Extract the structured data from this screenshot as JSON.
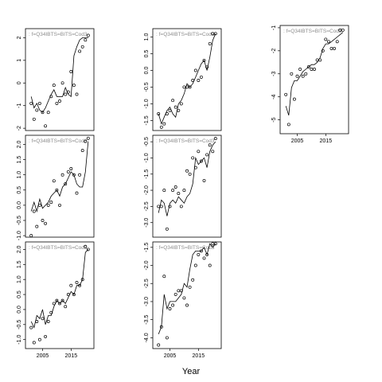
{
  "figure": {
    "xlabel": "Year"
  },
  "chart_data": [
    {
      "type": "line",
      "label": "f=Q34IBTS=BITS=Cod3",
      "xlim": [
        1999,
        2023
      ],
      "ylim": [
        -2.1,
        2.4
      ],
      "xticks": [],
      "yticks": [
        -2,
        -1,
        0,
        1,
        2
      ],
      "ytick_labels": [
        "-2",
        "-1",
        "0",
        "1",
        "2"
      ],
      "x": [
        2001,
        2002,
        2003,
        2004,
        2005,
        2006,
        2007,
        2008,
        2009,
        2010,
        2011,
        2012,
        2013,
        2014,
        2015,
        2016,
        2017,
        2018,
        2019,
        2020,
        2021
      ],
      "fitted": [
        -0.6,
        -1.1,
        -0.9,
        -1.2,
        -1.3,
        -1.1,
        -0.8,
        -0.5,
        -0.3,
        -0.6,
        -0.6,
        -0.6,
        -0.2,
        -0.5,
        -0.6,
        1.2,
        1.6,
        1.9,
        2.0,
        2.0,
        2.0
      ],
      "observed": [
        -0.9,
        -1.6,
        -1.2,
        -0.9,
        -1.3,
        -1.9,
        -1.3,
        -0.6,
        -0.1,
        -0.9,
        -0.8,
        0.0,
        -0.5,
        -0.4,
        0.5,
        -0.1,
        -0.5,
        1.4,
        1.6,
        1.9,
        2.1
      ]
    },
    {
      "type": "line",
      "label": "f=Q34IBTS=BITS=Cod3",
      "xlim": [
        1999,
        2023
      ],
      "ylim": [
        -1.8,
        1.25
      ],
      "xticks": [],
      "yticks": [
        -1.5,
        -1.0,
        -0.5,
        0.0,
        0.5,
        1.0
      ],
      "ytick_labels": [
        "-1.5",
        "-1.0",
        "-0.5",
        "0.0",
        "0.5",
        "1.0"
      ],
      "x": [
        2001,
        2002,
        2003,
        2004,
        2005,
        2006,
        2007,
        2008,
        2009,
        2010,
        2011,
        2012,
        2013,
        2014,
        2015,
        2016,
        2017,
        2018,
        2019,
        2020,
        2021
      ],
      "fitted": [
        -1.3,
        -1.6,
        -1.4,
        -1.2,
        -1.1,
        -1.3,
        -1.4,
        -1.0,
        -0.9,
        -0.7,
        -0.4,
        -0.5,
        -0.4,
        -0.2,
        0.0,
        0.2,
        0.3,
        0.0,
        0.4,
        0.9,
        1.1
      ],
      "observed": [
        -1.3,
        -1.7,
        -1.6,
        -1.3,
        -1.2,
        -0.9,
        -1.1,
        -1.2,
        -1.0,
        -0.5,
        -0.5,
        -0.5,
        -0.3,
        0.0,
        -0.3,
        -0.2,
        0.3,
        0.1,
        0.8,
        1.1,
        1.1
      ]
    },
    {
      "type": "line",
      "label": "f=Q34IBTS=BITS=Cod3",
      "xlim": [
        1999,
        2023
      ],
      "ylim": [
        -5.6,
        -0.9
      ],
      "xticks": [
        2005,
        2015
      ],
      "xtick_labels": [
        "2005",
        "2015"
      ],
      "yticks": [
        -5,
        -4,
        -3,
        -2,
        -1
      ],
      "ytick_labels": [
        "-5",
        "-4",
        "-3",
        "-2",
        "-1"
      ],
      "x": [
        2001,
        2002,
        2003,
        2004,
        2005,
        2006,
        2007,
        2008,
        2009,
        2010,
        2011,
        2012,
        2013,
        2014,
        2015,
        2016,
        2017,
        2018,
        2019,
        2020,
        2021
      ],
      "fitted": [
        -4.4,
        -4.8,
        -3.6,
        -3.3,
        -3.3,
        -3.1,
        -2.9,
        -2.8,
        -2.7,
        -2.6,
        -2.6,
        -2.5,
        -2.3,
        -1.9,
        -1.7,
        -1.7,
        -1.6,
        -1.5,
        -1.4,
        -1.3,
        -1.2
      ],
      "observed": [
        -3.9,
        -5.2,
        -3.0,
        -4.1,
        -3.1,
        -2.8,
        -3.1,
        -3.0,
        -2.7,
        -2.8,
        -2.8,
        -2.4,
        -2.4,
        -2.0,
        -1.5,
        -1.6,
        -1.9,
        -1.9,
        -1.6,
        -1.1,
        -1.1
      ]
    },
    {
      "type": "line",
      "label": "f=Q34IBTS=BITS=Cod3",
      "xlim": [
        1999,
        2023
      ],
      "ylim": [
        -1.05,
        2.3
      ],
      "xticks": [],
      "yticks": [
        -1.0,
        -0.5,
        0.0,
        0.5,
        1.0,
        1.5,
        2.0
      ],
      "ytick_labels": [
        "-1.0",
        "-0.5",
        "0.0",
        "0.5",
        "1.0",
        "1.5",
        "2.0"
      ],
      "x": [
        2001,
        2002,
        2003,
        2004,
        2005,
        2006,
        2007,
        2008,
        2009,
        2010,
        2011,
        2012,
        2013,
        2014,
        2015,
        2016,
        2017,
        2018,
        2019,
        2020,
        2021
      ],
      "fitted": [
        -0.2,
        0.1,
        -0.2,
        0.2,
        -0.1,
        0.0,
        0.1,
        0.3,
        0.4,
        0.5,
        0.3,
        0.6,
        0.7,
        0.9,
        1.1,
        1.0,
        0.7,
        0.6,
        0.6,
        1.1,
        2.1
      ],
      "observed": [
        -1.0,
        -0.2,
        -0.7,
        0.0,
        -0.5,
        -0.6,
        0.0,
        0.1,
        0.8,
        0.5,
        0.0,
        1.0,
        0.7,
        1.1,
        1.2,
        1.0,
        0.4,
        1.0,
        1.8,
        2.1,
        2.2
      ]
    },
    {
      "type": "line",
      "label": "f=Q34IBTS=BITS=Cod3",
      "xlim": [
        1999,
        2023
      ],
      "ylim": [
        -3.45,
        -0.3
      ],
      "xticks": [],
      "yticks": [
        -3.0,
        -2.5,
        -2.0,
        -1.5,
        -1.0,
        -0.5
      ],
      "ytick_labels": [
        "-3.0",
        "-2.5",
        "-2.0",
        "-1.5",
        "-1.0",
        "-0.5"
      ],
      "x": [
        2001,
        2002,
        2003,
        2004,
        2005,
        2006,
        2007,
        2008,
        2009,
        2010,
        2011,
        2012,
        2013,
        2014,
        2015,
        2016,
        2017,
        2018,
        2019,
        2020,
        2021
      ],
      "fitted": [
        -2.7,
        -2.3,
        -2.4,
        -2.8,
        -2.4,
        -2.3,
        -2.4,
        -2.2,
        -2.3,
        -2.4,
        -2.2,
        -2.1,
        -1.8,
        -1.0,
        -1.2,
        -1.1,
        -1.0,
        -1.3,
        -0.8,
        -0.6,
        -0.5
      ],
      "observed": [
        -2.5,
        -2.5,
        -2.0,
        -3.2,
        -2.5,
        -2.0,
        -1.9,
        -2.1,
        -2.5,
        -2.0,
        -1.4,
        -1.5,
        -1.0,
        -1.3,
        -0.8,
        -1.1,
        -1.7,
        -0.9,
        -0.6,
        -0.8,
        -0.4
      ]
    },
    {
      "type": "line",
      "label": "f=Q34IBTS=BITS=Cod3",
      "xlim": [
        1999,
        2023
      ],
      "ylim": [
        -4.3,
        -1.35
      ],
      "xticks": [
        2005,
        2015
      ],
      "xtick_labels": [
        "2005",
        "2015"
      ],
      "yticks": [
        -4.0,
        -3.5,
        -3.0,
        -2.5,
        -2.0,
        -1.5
      ],
      "ytick_labels": [
        "-4.0",
        "-3.5",
        "-3.0",
        "-2.5",
        "-2.0",
        "-1.5"
      ],
      "x": [
        2001,
        2002,
        2003,
        2004,
        2005,
        2006,
        2007,
        2008,
        2009,
        2010,
        2011,
        2012,
        2013,
        2014,
        2015,
        2016,
        2017,
        2018,
        2019,
        2020,
        2021
      ],
      "fitted": [
        -3.9,
        -3.7,
        -2.8,
        -3.2,
        -3.0,
        -3.0,
        -3.0,
        -2.9,
        -2.8,
        -2.5,
        -2.6,
        -2.1,
        -1.7,
        -1.6,
        -1.6,
        -1.6,
        -1.5,
        -1.7,
        -1.4,
        -1.5,
        -1.4
      ],
      "observed": [
        -4.2,
        -3.7,
        -2.3,
        -4.0,
        -3.2,
        -3.1,
        -2.8,
        -2.7,
        -2.7,
        -2.9,
        -3.1,
        -2.6,
        -2.4,
        -2.0,
        -1.7,
        -1.6,
        -1.8,
        -1.7,
        -2.0,
        -1.4,
        -1.4
      ]
    },
    {
      "type": "line",
      "label": "f=Q34IBTS=BITS=Cod3",
      "xlim": [
        1999,
        2023
      ],
      "ylim": [
        -1.3,
        2.25
      ],
      "xticks": [
        2005,
        2015
      ],
      "xtick_labels": [
        "2005",
        "2015"
      ],
      "yticks": [
        -1.0,
        -0.5,
        0.0,
        0.5,
        1.0,
        1.5,
        2.0
      ],
      "ytick_labels": [
        "-1.0",
        "-0.5",
        "0.0",
        "0.5",
        "1.0",
        "1.5",
        "2.0"
      ],
      "x": [
        2001,
        2002,
        2003,
        2004,
        2005,
        2006,
        2007,
        2008,
        2009,
        2010,
        2011,
        2012,
        2013,
        2014,
        2015,
        2016,
        2017,
        2018,
        2019,
        2020,
        2021
      ],
      "fitted": [
        -0.4,
        -0.6,
        -0.2,
        -0.3,
        0.0,
        -0.5,
        -0.2,
        -0.2,
        0.1,
        0.3,
        0.2,
        0.3,
        0.2,
        0.4,
        0.6,
        0.5,
        0.8,
        0.8,
        1.0,
        1.9,
        2.0
      ],
      "observed": [
        -0.6,
        -1.1,
        -0.4,
        -1.0,
        -0.3,
        -0.9,
        -0.4,
        -0.1,
        0.2,
        0.3,
        0.2,
        0.3,
        0.1,
        0.5,
        0.8,
        0.5,
        0.9,
        0.8,
        1.0,
        2.1,
        2.0
      ]
    }
  ]
}
